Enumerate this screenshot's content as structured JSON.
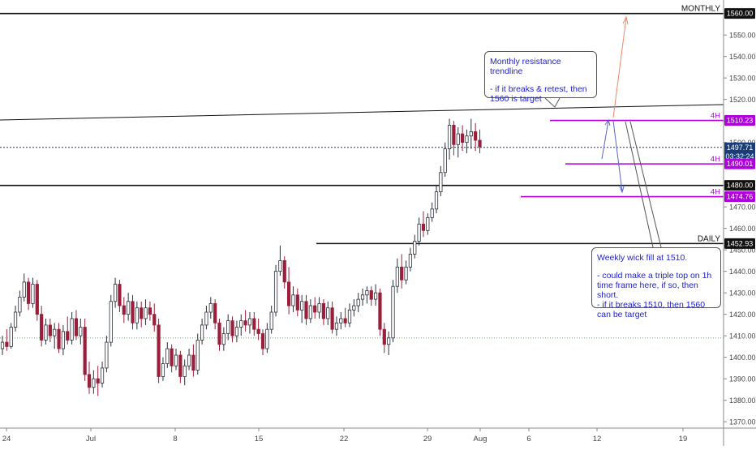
{
  "chart_data": {
    "type": "candlestick",
    "y_axis": {
      "ticks": [
        1370,
        1380,
        1390,
        1400,
        1410,
        1420,
        1430,
        1440,
        1450,
        1460,
        1470,
        1480,
        1490,
        1500,
        1510,
        1520,
        1530,
        1540,
        1550,
        1560
      ],
      "range": [
        1365,
        1563
      ]
    },
    "x_axis": {
      "tick_labels": [
        "24",
        "Jul",
        "8",
        "15",
        "22",
        "29",
        "Aug",
        "6",
        "12",
        "19"
      ]
    },
    "candles": [
      {
        "t": 0,
        "o": 1404,
        "h": 1410,
        "l": 1401,
        "c": 1407
      },
      {
        "t": 1,
        "o": 1407,
        "h": 1413,
        "l": 1403,
        "c": 1405
      },
      {
        "t": 2,
        "o": 1405,
        "h": 1416,
        "l": 1404,
        "c": 1414
      },
      {
        "t": 3,
        "o": 1414,
        "h": 1424,
        "l": 1412,
        "c": 1421
      },
      {
        "t": 4,
        "o": 1421,
        "h": 1431,
        "l": 1419,
        "c": 1428
      },
      {
        "t": 5,
        "o": 1428,
        "h": 1439,
        "l": 1426,
        "c": 1435
      },
      {
        "t": 6,
        "o": 1435,
        "h": 1437,
        "l": 1422,
        "c": 1425
      },
      {
        "t": 7,
        "o": 1425,
        "h": 1437,
        "l": 1423,
        "c": 1434
      },
      {
        "t": 8,
        "o": 1434,
        "h": 1436,
        "l": 1417,
        "c": 1420
      },
      {
        "t": 9,
        "o": 1420,
        "h": 1424,
        "l": 1405,
        "c": 1408
      },
      {
        "t": 10,
        "o": 1408,
        "h": 1418,
        "l": 1406,
        "c": 1415
      },
      {
        "t": 11,
        "o": 1415,
        "h": 1418,
        "l": 1407,
        "c": 1410
      },
      {
        "t": 12,
        "o": 1410,
        "h": 1416,
        "l": 1404,
        "c": 1413
      },
      {
        "t": 13,
        "o": 1413,
        "h": 1416,
        "l": 1402,
        "c": 1404
      },
      {
        "t": 14,
        "o": 1404,
        "h": 1415,
        "l": 1401,
        "c": 1412
      },
      {
        "t": 15,
        "o": 1412,
        "h": 1419,
        "l": 1406,
        "c": 1408
      },
      {
        "t": 16,
        "o": 1408,
        "h": 1421,
        "l": 1406,
        "c": 1418
      },
      {
        "t": 17,
        "o": 1418,
        "h": 1422,
        "l": 1408,
        "c": 1410
      },
      {
        "t": 18,
        "o": 1410,
        "h": 1418,
        "l": 1406,
        "c": 1414
      },
      {
        "t": 19,
        "o": 1414,
        "h": 1418,
        "l": 1389,
        "c": 1392
      },
      {
        "t": 20,
        "o": 1392,
        "h": 1398,
        "l": 1383,
        "c": 1386
      },
      {
        "t": 21,
        "o": 1386,
        "h": 1394,
        "l": 1383,
        "c": 1390
      },
      {
        "t": 22,
        "o": 1390,
        "h": 1396,
        "l": 1382,
        "c": 1388
      },
      {
        "t": 23,
        "o": 1388,
        "h": 1398,
        "l": 1386,
        "c": 1395
      },
      {
        "t": 24,
        "o": 1395,
        "h": 1410,
        "l": 1393,
        "c": 1407
      },
      {
        "t": 25,
        "o": 1407,
        "h": 1429,
        "l": 1405,
        "c": 1426
      },
      {
        "t": 26,
        "o": 1426,
        "h": 1437,
        "l": 1423,
        "c": 1434
      },
      {
        "t": 27,
        "o": 1434,
        "h": 1436,
        "l": 1421,
        "c": 1424
      },
      {
        "t": 28,
        "o": 1424,
        "h": 1428,
        "l": 1416,
        "c": 1420
      },
      {
        "t": 29,
        "o": 1420,
        "h": 1430,
        "l": 1417,
        "c": 1426
      },
      {
        "t": 30,
        "o": 1426,
        "h": 1429,
        "l": 1413,
        "c": 1416
      },
      {
        "t": 31,
        "o": 1416,
        "h": 1426,
        "l": 1413,
        "c": 1423
      },
      {
        "t": 32,
        "o": 1423,
        "h": 1426,
        "l": 1414,
        "c": 1418
      },
      {
        "t": 33,
        "o": 1418,
        "h": 1427,
        "l": 1415,
        "c": 1423
      },
      {
        "t": 34,
        "o": 1423,
        "h": 1426,
        "l": 1417,
        "c": 1420
      },
      {
        "t": 35,
        "o": 1420,
        "h": 1425,
        "l": 1412,
        "c": 1415
      },
      {
        "t": 36,
        "o": 1415,
        "h": 1418,
        "l": 1388,
        "c": 1391
      },
      {
        "t": 37,
        "o": 1391,
        "h": 1400,
        "l": 1389,
        "c": 1397
      },
      {
        "t": 38,
        "o": 1397,
        "h": 1407,
        "l": 1395,
        "c": 1404
      },
      {
        "t": 39,
        "o": 1404,
        "h": 1406,
        "l": 1393,
        "c": 1396
      },
      {
        "t": 40,
        "o": 1396,
        "h": 1404,
        "l": 1394,
        "c": 1401
      },
      {
        "t": 41,
        "o": 1401,
        "h": 1403,
        "l": 1388,
        "c": 1391
      },
      {
        "t": 42,
        "o": 1391,
        "h": 1399,
        "l": 1387,
        "c": 1396
      },
      {
        "t": 43,
        "o": 1396,
        "h": 1404,
        "l": 1394,
        "c": 1401
      },
      {
        "t": 44,
        "o": 1401,
        "h": 1406,
        "l": 1391,
        "c": 1394
      },
      {
        "t": 45,
        "o": 1394,
        "h": 1411,
        "l": 1392,
        "c": 1408
      },
      {
        "t": 46,
        "o": 1408,
        "h": 1418,
        "l": 1406,
        "c": 1415
      },
      {
        "t": 47,
        "o": 1415,
        "h": 1424,
        "l": 1413,
        "c": 1421
      },
      {
        "t": 48,
        "o": 1421,
        "h": 1428,
        "l": 1418,
        "c": 1425
      },
      {
        "t": 49,
        "o": 1425,
        "h": 1427,
        "l": 1413,
        "c": 1416
      },
      {
        "t": 50,
        "o": 1416,
        "h": 1418,
        "l": 1403,
        "c": 1406
      },
      {
        "t": 51,
        "o": 1406,
        "h": 1414,
        "l": 1403,
        "c": 1411
      },
      {
        "t": 52,
        "o": 1411,
        "h": 1420,
        "l": 1408,
        "c": 1417
      },
      {
        "t": 53,
        "o": 1417,
        "h": 1419,
        "l": 1407,
        "c": 1410
      },
      {
        "t": 54,
        "o": 1410,
        "h": 1417,
        "l": 1407,
        "c": 1414
      },
      {
        "t": 55,
        "o": 1414,
        "h": 1420,
        "l": 1410,
        "c": 1417
      },
      {
        "t": 56,
        "o": 1417,
        "h": 1422,
        "l": 1412,
        "c": 1415
      },
      {
        "t": 57,
        "o": 1415,
        "h": 1421,
        "l": 1411,
        "c": 1418
      },
      {
        "t": 58,
        "o": 1418,
        "h": 1421,
        "l": 1410,
        "c": 1413
      },
      {
        "t": 59,
        "o": 1413,
        "h": 1418,
        "l": 1408,
        "c": 1411
      },
      {
        "t": 60,
        "o": 1411,
        "h": 1413,
        "l": 1401,
        "c": 1404
      },
      {
        "t": 61,
        "o": 1404,
        "h": 1416,
        "l": 1402,
        "c": 1413
      },
      {
        "t": 62,
        "o": 1413,
        "h": 1424,
        "l": 1411,
        "c": 1421
      },
      {
        "t": 63,
        "o": 1421,
        "h": 1443,
        "l": 1419,
        "c": 1440
      },
      {
        "t": 64,
        "o": 1440,
        "h": 1452,
        "l": 1438,
        "c": 1445
      },
      {
        "t": 65,
        "o": 1445,
        "h": 1447,
        "l": 1432,
        "c": 1435
      },
      {
        "t": 66,
        "o": 1435,
        "h": 1442,
        "l": 1420,
        "c": 1424
      },
      {
        "t": 67,
        "o": 1424,
        "h": 1433,
        "l": 1421,
        "c": 1429
      },
      {
        "t": 68,
        "o": 1429,
        "h": 1432,
        "l": 1419,
        "c": 1422
      },
      {
        "t": 69,
        "o": 1422,
        "h": 1429,
        "l": 1416,
        "c": 1426
      },
      {
        "t": 70,
        "o": 1426,
        "h": 1429,
        "l": 1415,
        "c": 1418
      },
      {
        "t": 71,
        "o": 1418,
        "h": 1427,
        "l": 1416,
        "c": 1424
      },
      {
        "t": 72,
        "o": 1424,
        "h": 1428,
        "l": 1418,
        "c": 1421
      },
      {
        "t": 73,
        "o": 1421,
        "h": 1428,
        "l": 1418,
        "c": 1425
      },
      {
        "t": 74,
        "o": 1425,
        "h": 1427,
        "l": 1415,
        "c": 1418
      },
      {
        "t": 75,
        "o": 1418,
        "h": 1426,
        "l": 1415,
        "c": 1423
      },
      {
        "t": 76,
        "o": 1423,
        "h": 1426,
        "l": 1411,
        "c": 1413
      },
      {
        "t": 77,
        "o": 1413,
        "h": 1419,
        "l": 1410,
        "c": 1416
      },
      {
        "t": 78,
        "o": 1416,
        "h": 1421,
        "l": 1413,
        "c": 1418
      },
      {
        "t": 79,
        "o": 1418,
        "h": 1423,
        "l": 1414,
        "c": 1416
      },
      {
        "t": 80,
        "o": 1416,
        "h": 1425,
        "l": 1414,
        "c": 1422
      },
      {
        "t": 81,
        "o": 1422,
        "h": 1427,
        "l": 1419,
        "c": 1424
      },
      {
        "t": 82,
        "o": 1424,
        "h": 1430,
        "l": 1421,
        "c": 1427
      },
      {
        "t": 83,
        "o": 1427,
        "h": 1432,
        "l": 1424,
        "c": 1429
      },
      {
        "t": 84,
        "o": 1429,
        "h": 1433,
        "l": 1425,
        "c": 1431
      },
      {
        "t": 85,
        "o": 1431,
        "h": 1433,
        "l": 1424,
        "c": 1427
      },
      {
        "t": 86,
        "o": 1427,
        "h": 1434,
        "l": 1424,
        "c": 1430
      },
      {
        "t": 87,
        "o": 1430,
        "h": 1432,
        "l": 1410,
        "c": 1413
      },
      {
        "t": 88,
        "o": 1413,
        "h": 1416,
        "l": 1402,
        "c": 1406
      },
      {
        "t": 89,
        "o": 1406,
        "h": 1412,
        "l": 1401,
        "c": 1409
      },
      {
        "t": 90,
        "o": 1409,
        "h": 1436,
        "l": 1407,
        "c": 1433
      },
      {
        "t": 91,
        "o": 1433,
        "h": 1446,
        "l": 1430,
        "c": 1442
      },
      {
        "t": 92,
        "o": 1442,
        "h": 1448,
        "l": 1432,
        "c": 1436
      },
      {
        "t": 93,
        "o": 1436,
        "h": 1445,
        "l": 1434,
        "c": 1442
      },
      {
        "t": 94,
        "o": 1442,
        "h": 1451,
        "l": 1440,
        "c": 1448
      },
      {
        "t": 95,
        "o": 1448,
        "h": 1457,
        "l": 1446,
        "c": 1454
      },
      {
        "t": 96,
        "o": 1454,
        "h": 1465,
        "l": 1452,
        "c": 1462
      },
      {
        "t": 97,
        "o": 1462,
        "h": 1468,
        "l": 1456,
        "c": 1459
      },
      {
        "t": 98,
        "o": 1459,
        "h": 1467,
        "l": 1457,
        "c": 1465
      },
      {
        "t": 99,
        "o": 1465,
        "h": 1472,
        "l": 1463,
        "c": 1469
      },
      {
        "t": 100,
        "o": 1469,
        "h": 1480,
        "l": 1467,
        "c": 1477
      },
      {
        "t": 101,
        "o": 1477,
        "h": 1489,
        "l": 1475,
        "c": 1486
      },
      {
        "t": 102,
        "o": 1486,
        "h": 1500,
        "l": 1484,
        "c": 1497
      },
      {
        "t": 103,
        "o": 1497,
        "h": 1511,
        "l": 1492,
        "c": 1508
      },
      {
        "t": 104,
        "o": 1508,
        "h": 1510,
        "l": 1494,
        "c": 1499
      },
      {
        "t": 105,
        "o": 1499,
        "h": 1507,
        "l": 1493,
        "c": 1504
      },
      {
        "t": 106,
        "o": 1504,
        "h": 1508,
        "l": 1496,
        "c": 1500
      },
      {
        "t": 107,
        "o": 1500,
        "h": 1506,
        "l": 1495,
        "c": 1503
      },
      {
        "t": 108,
        "o": 1503,
        "h": 1511,
        "l": 1497,
        "c": 1505
      },
      {
        "t": 109,
        "o": 1505,
        "h": 1509,
        "l": 1496,
        "c": 1501
      },
      {
        "t": 110,
        "o": 1501,
        "h": 1506,
        "l": 1495,
        "c": 1498
      }
    ],
    "price_levels": [
      {
        "name": "monthly",
        "value": 1560.0,
        "label": "MONTHLY",
        "tag": "1560.00"
      },
      {
        "name": "4h-top",
        "value": 1510.23,
        "label": "4H",
        "tag": "1510.23"
      },
      {
        "name": "current",
        "value": 1497.71,
        "tag": "1497.71",
        "countdown": "03:32:24"
      },
      {
        "name": "4h-mid",
        "value": 1490.01,
        "label": "4H",
        "tag": "1490.01"
      },
      {
        "name": "level-1480",
        "value": 1480.0,
        "tag": "1480.00"
      },
      {
        "name": "4h-low",
        "value": 1474.76,
        "label": "4H",
        "tag": "1474.76"
      },
      {
        "name": "daily",
        "value": 1452.93,
        "label": "DAILY",
        "tag": "1452.93"
      }
    ],
    "dotted_level": 1409
  },
  "annotations": {
    "monthly_note": {
      "title": "Monthly resistance trendline",
      "body": "- if it breaks & retest, then 1560 is target"
    },
    "weekly_note": {
      "title": "Weekly wick fill at 1510.",
      "body": "- could make a triple top on 1h time frame here, if so, then short.\n- if it breaks 1510, then 1560 can be target"
    }
  },
  "colors": {
    "up": "#2b2f3a",
    "down": "#9a1f3a",
    "level_4h": "#b000dd",
    "current": "#1a3d7a",
    "tag_dark": "#111111",
    "note_text": "#2222cc",
    "arrow_blue": "#5566cc",
    "arrow_red": "#ee8866"
  }
}
